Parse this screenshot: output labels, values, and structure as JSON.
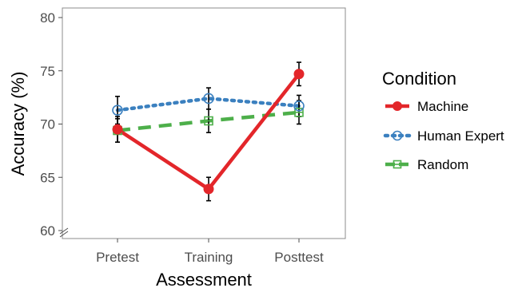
{
  "chart_data": {
    "type": "line",
    "xlabel": "Assessment",
    "ylabel": "Accuracy (%)",
    "categories": [
      "Pretest",
      "Training",
      "Posttest"
    ],
    "ylim": [
      60,
      80
    ],
    "yticks": [
      60,
      65,
      70,
      75,
      80
    ],
    "ytick_labels": [
      "60",
      "65",
      "70",
      "75",
      "80"
    ],
    "grid": false,
    "axis_break": "bottom-left",
    "legend": {
      "title": "Condition",
      "position": "right"
    },
    "series": [
      {
        "name": "Machine",
        "color": "#e3262a",
        "line_style": "solid",
        "marker": "filled-circle",
        "values": [
          69.5,
          63.9,
          74.7
        ],
        "error": [
          1.2,
          1.1,
          1.1
        ]
      },
      {
        "name": "Human Expert",
        "color": "#3b80bf",
        "line_style": "dotted",
        "marker": "open-circle",
        "values": [
          71.3,
          72.4,
          71.7
        ],
        "error": [
          1.3,
          1.0,
          1.0
        ]
      },
      {
        "name": "Random",
        "color": "#4daf4a",
        "line_style": "dashed",
        "marker": "open-square",
        "values": [
          69.4,
          70.3,
          71.1
        ],
        "error": [
          1.1,
          1.1,
          1.1
        ]
      }
    ]
  }
}
